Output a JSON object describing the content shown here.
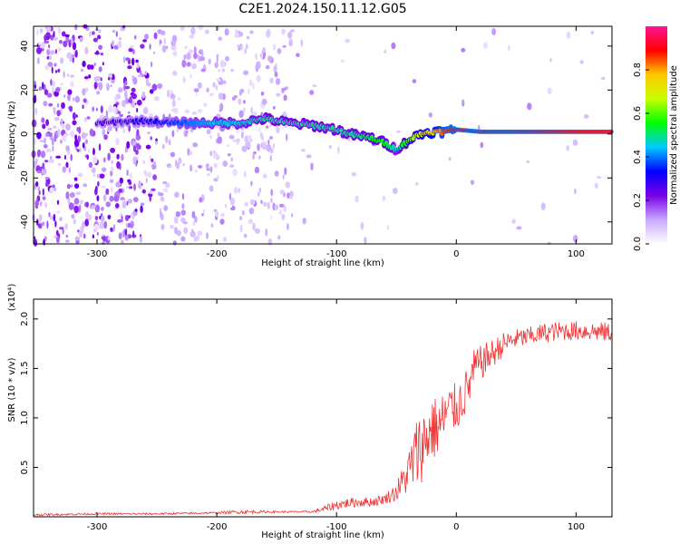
{
  "title": "C2E1.2024.150.11.12.G05",
  "chart_data": [
    {
      "type": "heatmap",
      "xlabel": "Height of straight line (km)",
      "ylabel": "Frequency (Hz)",
      "xlim": [
        -353,
        130
      ],
      "ylim": [
        -50,
        49
      ],
      "xticks": [
        -300,
        -200,
        -100,
        0,
        100
      ],
      "yticks": [
        -40,
        -20,
        0,
        20,
        40
      ],
      "colorbar": {
        "label": "Normalized spectral amplitude",
        "range": [
          0,
          1
        ],
        "ticks": [
          0.0,
          0.2,
          0.4,
          0.6,
          0.8
        ],
        "colors": [
          "#ffffff",
          "#c9a8ff",
          "#7a00e8",
          "#0000ff",
          "#00c8ff",
          "#00ff00",
          "#c8ff00",
          "#ffc800",
          "#ff0000",
          "#ff1493"
        ]
      },
      "trace": {
        "x": [
          -300,
          -260,
          -240,
          -220,
          -200,
          -180,
          -160,
          -140,
          -120,
          -100,
          -90,
          -80,
          -70,
          -60,
          -50,
          -40,
          -30,
          -20,
          -10,
          0,
          20,
          60,
          130
        ],
        "freq": [
          5,
          6,
          5,
          5,
          5,
          5,
          7,
          5,
          4,
          2,
          0,
          -1,
          -2,
          -4,
          -7,
          -3,
          0,
          1,
          1,
          2,
          1,
          1,
          1
        ],
        "amplitude": [
          0.25,
          0.3,
          0.35,
          0.4,
          0.45,
          0.45,
          0.5,
          0.5,
          0.5,
          0.5,
          0.5,
          0.5,
          0.55,
          0.55,
          0.45,
          0.6,
          0.7,
          0.75,
          0.85,
          0.9,
          0.9,
          0.9,
          0.9
        ]
      },
      "grid": false
    },
    {
      "type": "line",
      "xlabel": "Height of straight line (km)",
      "ylabel": "SNR (10 * v/v)",
      "y_multiplier": "(x10⁴)",
      "xlim": [
        -353,
        130
      ],
      "ylim": [
        0,
        2.2
      ],
      "xticks": [
        -300,
        -200,
        -100,
        0,
        100
      ],
      "yticks": [
        0.5,
        1.0,
        1.5,
        2.0
      ],
      "series": [
        {
          "color": "#f03232",
          "x": [
            -353,
            -300,
            -250,
            -200,
            -180,
            -150,
            -120,
            -110,
            -100,
            -90,
            -80,
            -70,
            -60,
            -50,
            -40,
            -35,
            -30,
            -25,
            -20,
            -15,
            -10,
            -5,
            0,
            5,
            10,
            15,
            20,
            30,
            40,
            50,
            60,
            70,
            80,
            90,
            100,
            110,
            120,
            130
          ],
          "y": [
            0.02,
            0.03,
            0.03,
            0.04,
            0.05,
            0.05,
            0.05,
            0.08,
            0.12,
            0.14,
            0.15,
            0.15,
            0.18,
            0.25,
            0.45,
            0.6,
            0.7,
            0.8,
            0.9,
            0.9,
            1.0,
            1.1,
            1.1,
            1.2,
            1.3,
            1.5,
            1.55,
            1.65,
            1.75,
            1.8,
            1.82,
            1.85,
            1.87,
            1.88,
            1.88,
            1.88,
            1.87,
            1.86
          ],
          "noise": [
            0.01,
            0.01,
            0.01,
            0.01,
            0.02,
            0.01,
            0.01,
            0.03,
            0.05,
            0.05,
            0.05,
            0.05,
            0.05,
            0.1,
            0.22,
            0.35,
            0.38,
            0.35,
            0.35,
            0.3,
            0.3,
            0.25,
            0.25,
            0.25,
            0.22,
            0.2,
            0.18,
            0.15,
            0.12,
            0.1,
            0.1,
            0.1,
            0.1,
            0.1,
            0.1,
            0.1,
            0.1,
            0.1
          ]
        }
      ],
      "grid": false
    }
  ]
}
